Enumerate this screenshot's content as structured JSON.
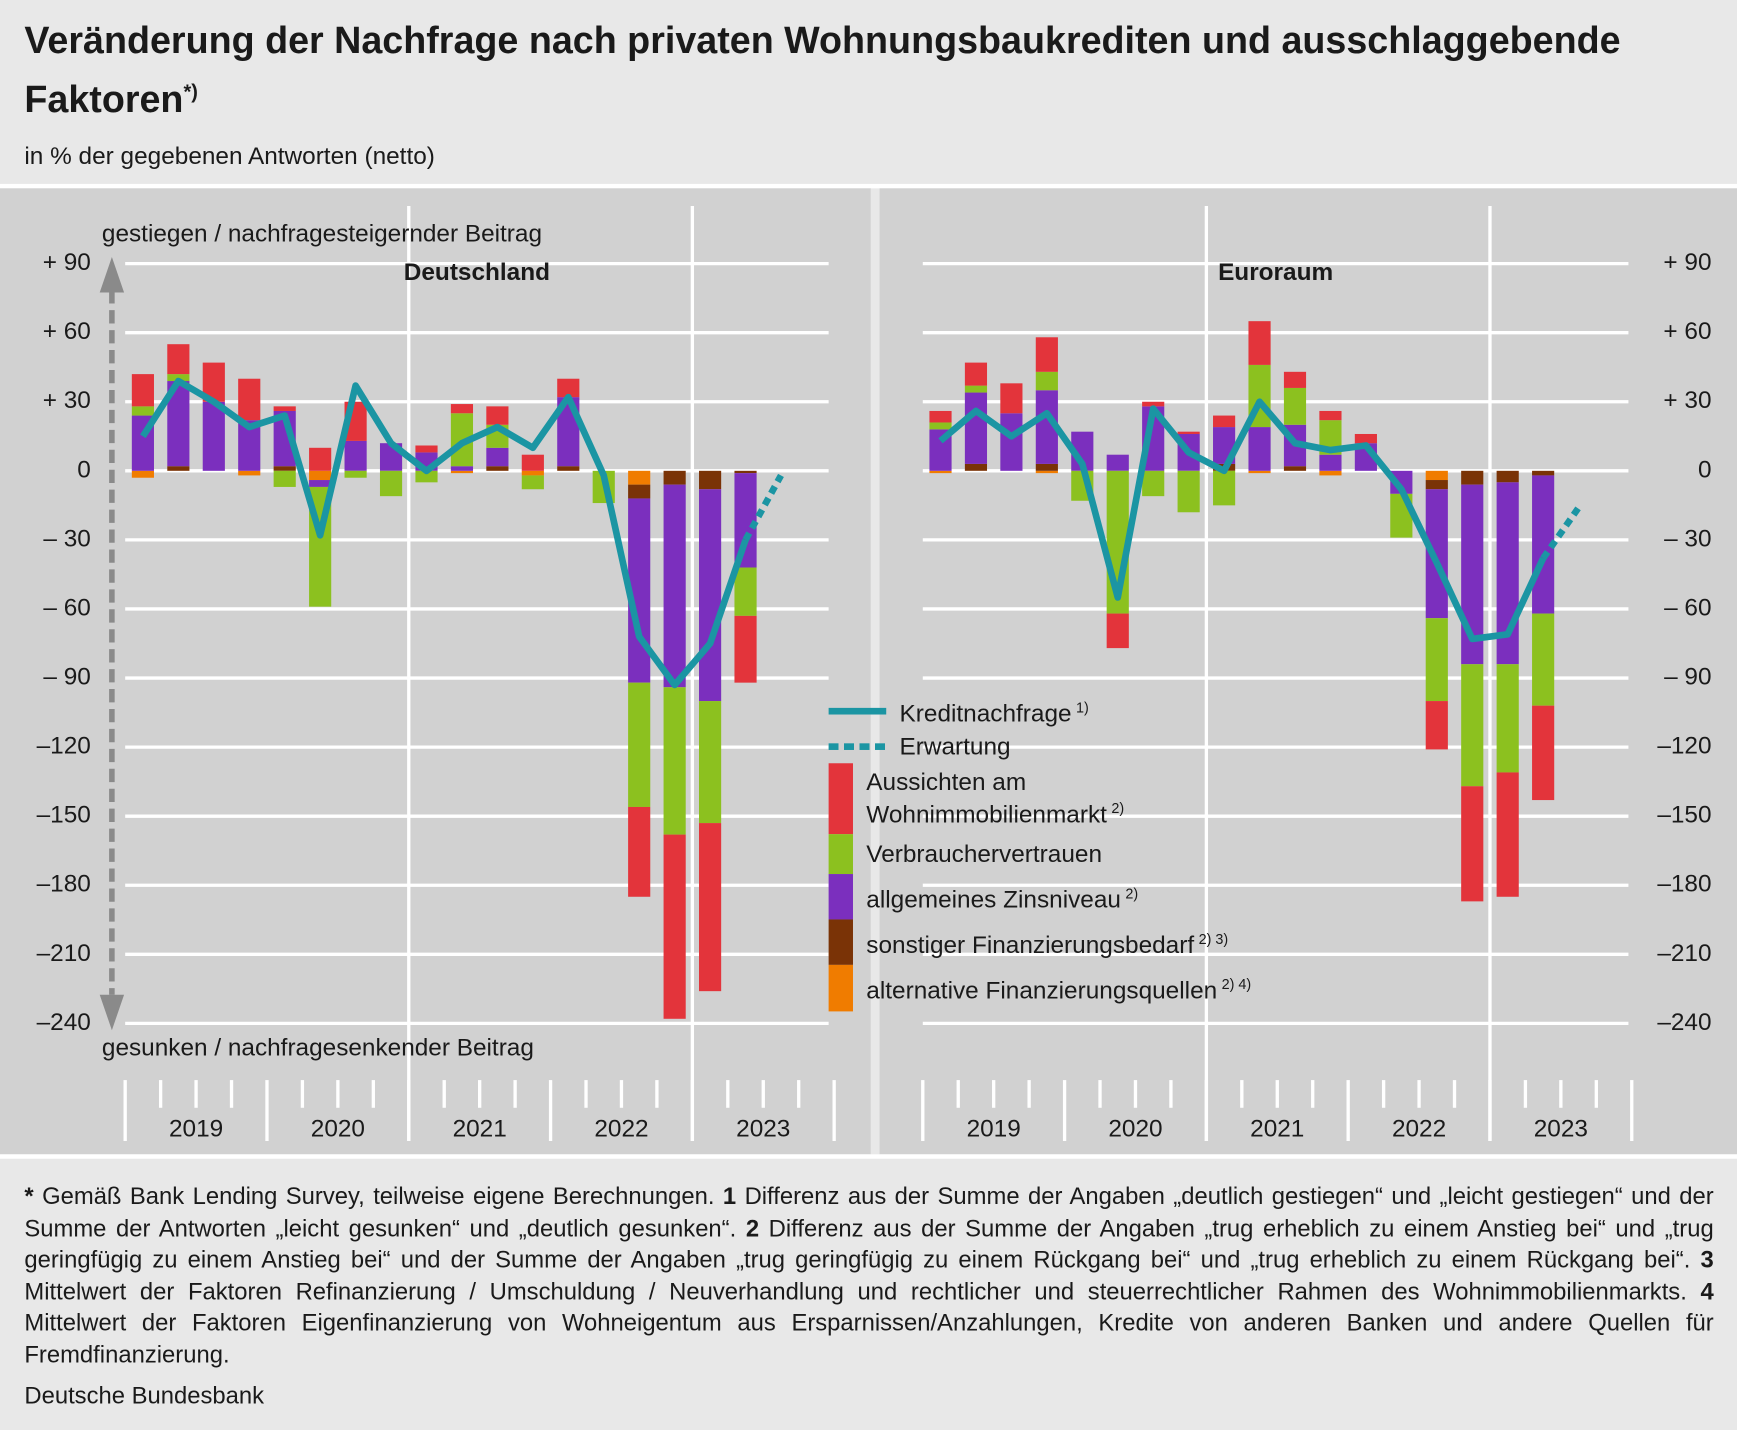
{
  "title": "Veränderung der Nachfrage nach privaten Wohnungsbaukrediten und ausschlaggebende Faktoren",
  "title_note": "*)",
  "subtitle": "in % der gegebenen Antworten (netto)",
  "chart_data": [
    {
      "type": "stacked_bar",
      "title": "Deutschland",
      "y_label_top": "gestiegen / nachfragesteigernder Beitrag",
      "y_label_bottom": "gesunken / nachfragesenkender Beitrag",
      "categories": [
        null,
        null,
        null,
        null,
        null,
        null,
        null,
        null,
        null,
        null,
        null,
        null,
        null,
        null,
        null,
        null,
        null,
        null,
        null
      ],
      "year_labels": [
        "2019",
        "2020",
        "2021",
        "2022",
        "2023"
      ],
      "ylim": [
        -255,
        115
      ],
      "yticks": [
        {
          "value": 90,
          "label": "+ 90"
        },
        {
          "value": 60,
          "label": "+ 60"
        },
        {
          "value": 30,
          "label": "+ 30"
        },
        0,
        {
          "value": -30,
          "label": "– 30"
        },
        {
          "value": -60,
          "label": "– 60"
        },
        {
          "value": -90,
          "label": "– 90"
        },
        {
          "value": -120,
          "label": "–120"
        },
        {
          "value": -150,
          "label": "–150"
        },
        {
          "value": -180,
          "label": "–180"
        },
        {
          "value": -210,
          "label": "–210"
        },
        {
          "value": -240,
          "label": "–240"
        }
      ],
      "grid": true,
      "series": [
        {
          "name": "Kreditnachfrage",
          "note": "1)",
          "type": "line",
          "color": "#1b95a3",
          "values": [
            15,
            39,
            30,
            19,
            24,
            -28,
            37,
            12,
            0,
            12,
            19,
            10,
            32,
            -2,
            -72,
            -93,
            -75,
            -30,
            null
          ]
        },
        {
          "name": "Erwartung",
          "type": "line",
          "dashed": true,
          "color": "#1b95a3",
          "values": [
            null,
            null,
            null,
            null,
            null,
            null,
            null,
            null,
            null,
            null,
            null,
            null,
            null,
            null,
            null,
            null,
            null,
            -30,
            -2
          ]
        },
        {
          "name": "Aussichten am Wohnimmobilienmarkt",
          "note": "2)",
          "color": "#e3343b",
          "values": [
            14,
            13,
            17,
            18,
            2,
            10,
            17,
            0,
            3,
            4,
            8,
            7,
            8,
            0,
            -39,
            -80,
            -73,
            -29,
            null
          ]
        },
        {
          "name": "Verbrauchervertrauen",
          "color": "#8cc11f",
          "values": [
            4,
            3,
            0,
            0,
            -7,
            -52,
            -3,
            -11,
            -5,
            23,
            10,
            -6,
            0,
            -14,
            -54,
            -64,
            -53,
            -21,
            null
          ]
        },
        {
          "name": "allgemeines Zinsniveau",
          "note": "2)",
          "color": "#7b2fbe",
          "values": [
            24,
            37,
            30,
            22,
            24,
            -3,
            13,
            12,
            8,
            2,
            8,
            0,
            30,
            0,
            -80,
            -88,
            -92,
            -41,
            null
          ]
        },
        {
          "name": "sonstiger Finanzierungsbedarf",
          "note": "2) 3)",
          "color": "#7a3306",
          "values": [
            0,
            2,
            0,
            0,
            2,
            0,
            0,
            0,
            0,
            0,
            2,
            0,
            2,
            0,
            -6,
            -6,
            -8,
            -1,
            null
          ]
        },
        {
          "name": "alternative Finanzierungsquellen",
          "note": "2) 4)",
          "color": "#f07c00",
          "values": [
            -3,
            0,
            0,
            -2,
            0,
            -4,
            0,
            0,
            0,
            -1,
            0,
            -2,
            0,
            0,
            -6,
            0,
            0,
            0,
            null
          ]
        }
      ]
    },
    {
      "type": "stacked_bar",
      "title": "Euroraum",
      "categories": [
        null,
        null,
        null,
        null,
        null,
        null,
        null,
        null,
        null,
        null,
        null,
        null,
        null,
        null,
        null,
        null,
        null,
        null,
        null
      ],
      "year_labels": [
        "2019",
        "2020",
        "2021",
        "2022",
        "2023"
      ],
      "ylim": [
        -255,
        115
      ],
      "yticks": [
        {
          "value": 90,
          "label": "+ 90"
        },
        {
          "value": 60,
          "label": "+ 60"
        },
        {
          "value": 30,
          "label": "+ 30"
        },
        0,
        {
          "value": -30,
          "label": "– 30"
        },
        {
          "value": -60,
          "label": "– 60"
        },
        {
          "value": -90,
          "label": "– 90"
        },
        {
          "value": -120,
          "label": "–120"
        },
        {
          "value": -150,
          "label": "–150"
        },
        {
          "value": -180,
          "label": "–180"
        },
        {
          "value": -210,
          "label": "–210"
        },
        {
          "value": -240,
          "label": "–240"
        }
      ],
      "grid": true,
      "series": [
        {
          "type": "line",
          "color": "#1b95a3",
          "values": [
            13,
            26,
            15,
            25,
            3,
            -55,
            27,
            8,
            0,
            30,
            12,
            9,
            11,
            -8,
            -40,
            -73,
            -71,
            -38,
            null
          ]
        },
        {
          "type": "line",
          "dashed": true,
          "color": "#1b95a3",
          "values": [
            null,
            null,
            null,
            null,
            null,
            null,
            null,
            null,
            null,
            null,
            null,
            null,
            null,
            null,
            null,
            null,
            null,
            -38,
            -16
          ]
        },
        {
          "color": "#e3343b",
          "values": [
            5,
            10,
            13,
            15,
            0,
            -15,
            2,
            1,
            5,
            19,
            7,
            4,
            4,
            0,
            -21,
            -50,
            -54,
            -41,
            null
          ]
        },
        {
          "color": "#8cc11f",
          "values": [
            3,
            3,
            0,
            8,
            -13,
            -62,
            -11,
            -18,
            -15,
            27,
            16,
            15,
            0,
            -19,
            -36,
            -53,
            -47,
            -40,
            null
          ]
        },
        {
          "color": "#7b2fbe",
          "values": [
            18,
            31,
            25,
            32,
            17,
            7,
            28,
            16,
            16,
            19,
            18,
            7,
            12,
            -10,
            -56,
            -78,
            -79,
            -60,
            null
          ]
        },
        {
          "color": "#7a3306",
          "values": [
            0,
            3,
            0,
            3,
            0,
            0,
            0,
            0,
            3,
            0,
            2,
            0,
            0,
            0,
            -4,
            -6,
            -5,
            -2,
            null
          ]
        },
        {
          "color": "#f07c00",
          "values": [
            -1,
            0,
            0,
            -1,
            0,
            0,
            0,
            0,
            0,
            -1,
            0,
            -2,
            0,
            0,
            -4,
            0,
            0,
            0,
            null
          ]
        }
      ]
    }
  ],
  "footnotes": [
    {
      "mark": "*",
      "text": "Gemäß Bank Lending Survey, teilweise eigene Berechnungen."
    },
    {
      "mark": "1",
      "text": "Differenz aus der Summe der Angaben „deutlich gestiegen“ und „leicht gestiegen“ und der Summe der Antworten „leicht gesunken“ und „deutlich gesunken“."
    },
    {
      "mark": "2",
      "text": "Differenz aus der Summe der Angaben „trug erheblich zu einem Anstieg bei“ und „trug geringfügig zu einem Anstieg bei“ und der Summe der Angaben „trug geringfügig zu einem Rückgang bei“ und „trug erheblich zu einem Rückgang bei“."
    },
    {
      "mark": "3",
      "text": "Mittelwert der Faktoren Refinanzierung / Umschuldung / Neuverhandlung und rechtlicher und steuerrechtlicher Rahmen des Wohnimmobilienmarkts."
    },
    {
      "mark": "4",
      "text": "Mittelwert der Faktoren Eigenfinanzierung von Wohneigentum aus Ersparnissen/Anzahlungen, Kredite von anderen Banken und andere Quellen für Fremdfinanzierung."
    }
  ],
  "source": "Deutsche Bundesbank"
}
